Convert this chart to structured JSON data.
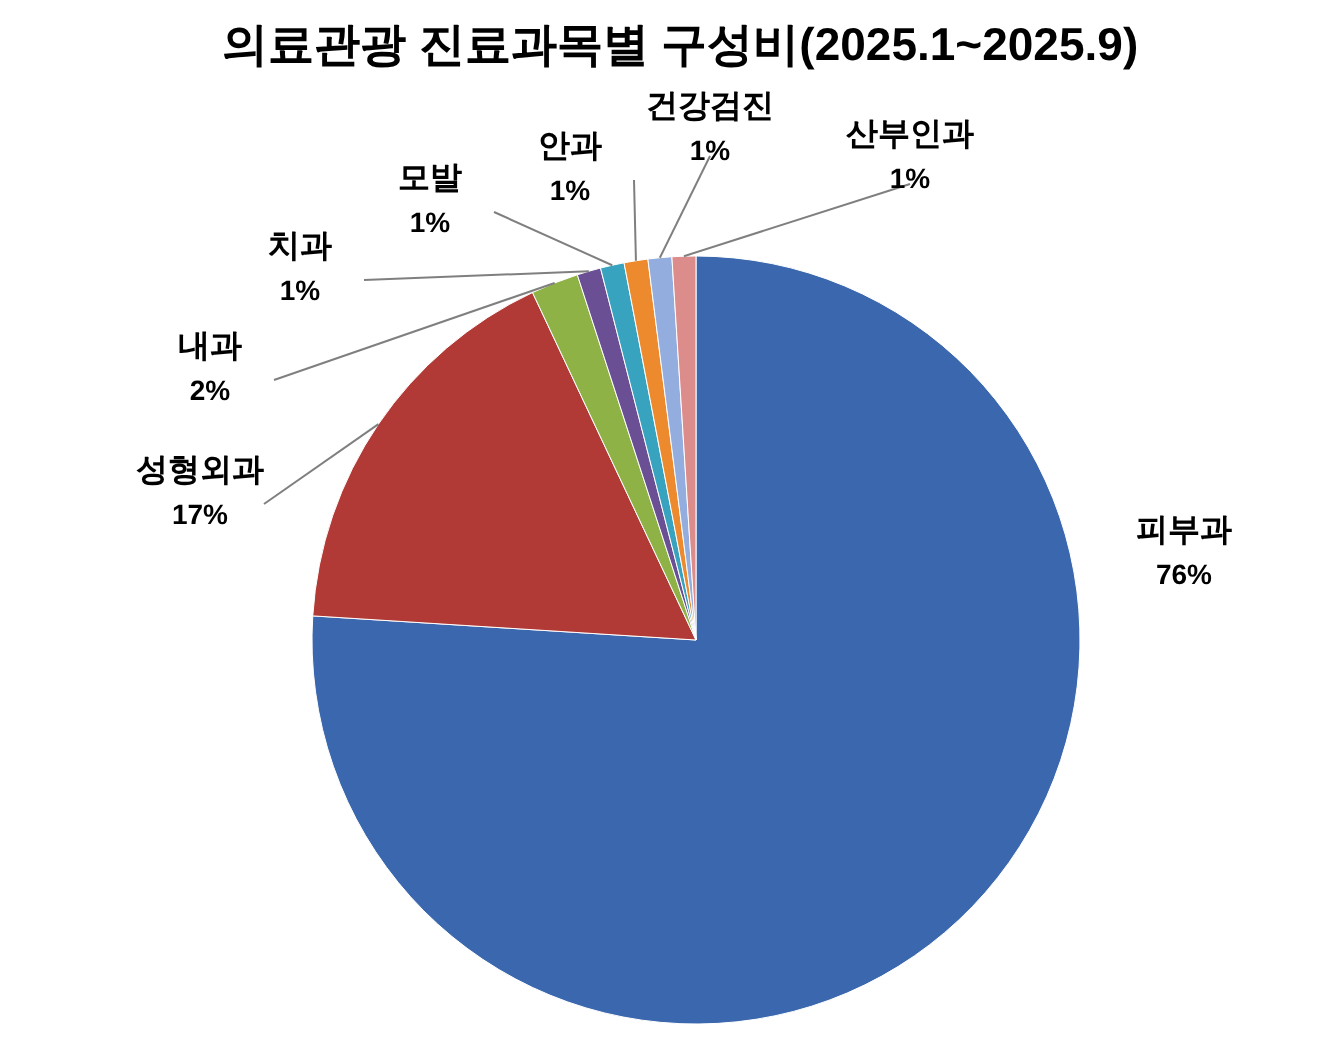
{
  "chart_data": {
    "type": "pie",
    "title": "의료관광 진료과목별 구성비(2025.1~2025.9)",
    "categories": [
      "피부과",
      "성형외과",
      "내과",
      "치과",
      "모발",
      "안과",
      "건강검진",
      "산부인과"
    ],
    "values": [
      76,
      17,
      2,
      1,
      1,
      1,
      1,
      1
    ],
    "colors": [
      "#3a67ad",
      "#b23a36",
      "#8fb246",
      "#6a4f95",
      "#38a3be",
      "#ee8a2e",
      "#93aede",
      "#dc8d8b"
    ],
    "value_labels": [
      "76%",
      "17%",
      "2%",
      "1%",
      "1%",
      "1%",
      "1%",
      "1%"
    ]
  }
}
